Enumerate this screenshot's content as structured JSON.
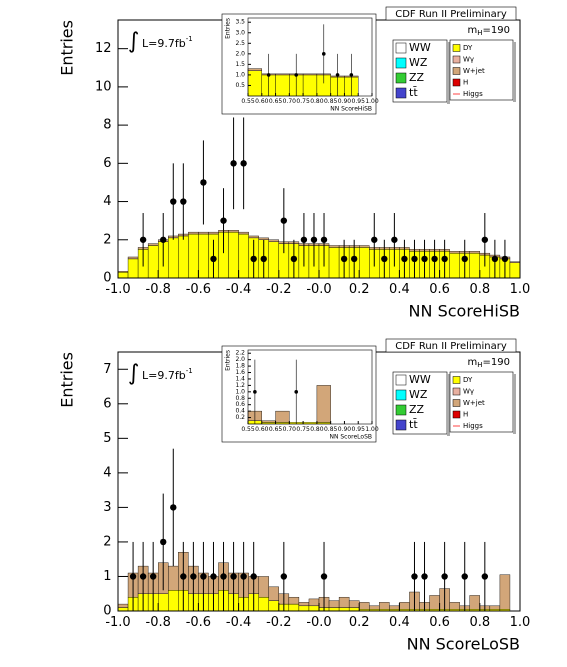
{
  "chart_data": [
    {
      "type": "histogram",
      "header": "CDF Run II Preliminary",
      "lumi_symbol": "∫",
      "lumi": "L=9.7fb",
      "lumi_sup": "-1",
      "mass": "m",
      "mass_sub": "H",
      "mass_value": "=190",
      "xlabel": "NN ScoreHiSB",
      "ylabel": "Entries",
      "xlim": [
        -1.0,
        1.0
      ],
      "ylim": [
        0,
        13.5
      ],
      "xticks": [
        {
          "value": -1.0,
          "label": "-1.0"
        },
        {
          "value": -0.8,
          "label": "-0.8"
        },
        {
          "value": -0.6,
          "label": "-0.6"
        },
        {
          "value": -0.4,
          "label": "-0.4"
        },
        {
          "value": -0.2,
          "label": "-0.2"
        },
        {
          "value": 0,
          "label": "-0.0"
        },
        0.2,
        0.4,
        0.6,
        0.8,
        {
          "value": 1.0,
          "label": "1.0"
        }
      ],
      "yticks": [
        0,
        2,
        4,
        6,
        8,
        10,
        12
      ],
      "bins": [
        -1.0,
        -0.95,
        -0.9,
        -0.85,
        -0.8,
        -0.75,
        -0.7,
        -0.65,
        -0.6,
        -0.55,
        -0.5,
        -0.45,
        -0.4,
        -0.35,
        -0.3,
        -0.25,
        -0.2,
        -0.15,
        -0.1,
        -0.05,
        0,
        0.05,
        0.1,
        0.15,
        0.2,
        0.25,
        0.3,
        0.35,
        0.4,
        0.45,
        0.5,
        0.55,
        0.6,
        0.65,
        0.7,
        0.75,
        0.8,
        0.85,
        0.9,
        0.95,
        1.0
      ],
      "series": [
        {
          "name": "DY",
          "color": "#ffff00",
          "values": [
            0.3,
            1.0,
            1.5,
            1.7,
            1.9,
            2.1,
            2.2,
            2.3,
            2.3,
            2.3,
            2.4,
            2.4,
            2.3,
            2.1,
            2.0,
            1.9,
            1.8,
            1.8,
            1.7,
            1.7,
            1.7,
            1.6,
            1.6,
            1.6,
            1.6,
            1.5,
            1.5,
            1.5,
            1.5,
            1.4,
            1.4,
            1.4,
            1.4,
            1.3,
            1.3,
            1.3,
            1.2,
            1.1,
            1.0,
            0.8
          ]
        },
        {
          "name": "W+jet",
          "color": "#d2a679",
          "values": [
            0.05,
            0.1,
            0.1,
            0.1,
            0.1,
            0.1,
            0.1,
            0.1,
            0.1,
            0.1,
            0.1,
            0.1,
            0.1,
            0.1,
            0.1,
            0.1,
            0.1,
            0.1,
            0.1,
            0.1,
            0.1,
            0.1,
            0.1,
            0.1,
            0.1,
            0.1,
            0.1,
            0.1,
            0.1,
            0.1,
            0.1,
            0.1,
            0.1,
            0.1,
            0.1,
            0.1,
            0.1,
            0.1,
            0.1,
            0.05
          ]
        }
      ],
      "points": {
        "x": [
          -0.875,
          -0.775,
          -0.725,
          -0.675,
          -0.575,
          -0.525,
          -0.475,
          -0.425,
          -0.375,
          -0.325,
          -0.275,
          -0.175,
          -0.125,
          -0.075,
          -0.025,
          0.025,
          0.125,
          0.175,
          0.275,
          0.325,
          0.375,
          0.425,
          0.475,
          0.525,
          0.575,
          0.625,
          0.725,
          0.825,
          0.875,
          0.925
        ],
        "values": [
          2,
          2,
          4,
          4,
          5,
          1,
          3,
          6,
          6,
          1,
          1,
          3,
          1,
          2,
          2,
          2,
          1,
          1,
          2,
          1,
          2,
          1,
          1,
          1,
          1,
          1,
          1,
          2,
          1,
          1
        ],
        "errors": [
          1.4,
          1.4,
          2,
          2,
          2.2,
          1,
          1.7,
          2.4,
          2.4,
          1,
          1,
          1.7,
          1,
          1.4,
          1.4,
          1.4,
          1,
          1,
          1.4,
          1,
          1.4,
          1,
          1,
          1,
          1,
          1,
          1,
          1.4,
          1,
          1
        ]
      },
      "other_entries": [
        {
          "name": "WW",
          "color": "#ffffff"
        },
        {
          "name": "WZ",
          "color": "#00ffff"
        },
        {
          "name": "ZZ",
          "color": "#33cc33"
        },
        {
          "name": "tt̄",
          "color": "#4444cc"
        },
        {
          "name": "Wγ",
          "color": "#e8b0a0"
        },
        {
          "name": "H",
          "color": "#dd0000"
        },
        {
          "name": "Higgs",
          "color": "#ff4444",
          "marker": "line"
        }
      ]
    },
    {
      "type": "histogram",
      "xlabel": "NN ScoreHiSB",
      "ylabel": "Entries",
      "xlim": [
        0.55,
        1.0
      ],
      "ylim": [
        0,
        3.7
      ],
      "xticks": [
        0.55,
        {
          "value": 0.6,
          "label": "0.60"
        },
        0.65,
        {
          "value": 0.7,
          "label": "0.70"
        },
        0.75,
        {
          "value": 0.8,
          "label": "0.80"
        },
        0.85,
        {
          "value": 0.9,
          "label": "0.90"
        },
        0.95,
        {
          "value": 1.0,
          "label": "1.00"
        }
      ],
      "yticks": [
        0.5,
        {
          "value": 1.0,
          "label": "1.0"
        },
        1.5,
        {
          "value": 2.0,
          "label": "2.0"
        },
        2.5,
        {
          "value": 3.0,
          "label": "3.0"
        },
        3.5
      ],
      "bins": [
        0.55,
        0.6,
        0.65,
        0.7,
        0.75,
        0.8,
        0.85,
        0.9,
        0.95,
        1.0
      ],
      "series": [
        {
          "name": "DY",
          "color": "#ffff00",
          "values": [
            1.2,
            1.0,
            1.0,
            1.0,
            1.0,
            1.0,
            0.9,
            0.9,
            0
          ]
        },
        {
          "name": "W+jet",
          "color": "#d2a679",
          "values": [
            0.1,
            0.05,
            0.05,
            0.05,
            0.05,
            0.05,
            0.05,
            0.05,
            0
          ]
        }
      ],
      "points": {
        "x": [
          0.625,
          0.725,
          0.825,
          0.875,
          0.925
        ],
        "values": [
          1,
          1,
          2,
          1,
          1
        ],
        "errors": [
          1,
          1,
          1.4,
          1,
          1
        ]
      }
    },
    {
      "type": "histogram",
      "header": "CDF Run II Preliminary",
      "lumi_symbol": "∫",
      "lumi": "L=9.7fb",
      "lumi_sup": "-1",
      "mass": "m",
      "mass_sub": "H",
      "mass_value": "=190",
      "xlabel": "NN ScoreLoSB",
      "ylabel": "Entries",
      "xlim": [
        -1.0,
        1.0
      ],
      "ylim": [
        0,
        7.5
      ],
      "xticks": [
        {
          "value": -1.0,
          "label": "-1.0"
        },
        {
          "value": -0.8,
          "label": "-0.8"
        },
        {
          "value": -0.6,
          "label": "-0.6"
        },
        {
          "value": -0.4,
          "label": "-0.4"
        },
        {
          "value": -0.2,
          "label": "-0.2"
        },
        {
          "value": 0,
          "label": "-0.0"
        },
        0.2,
        0.4,
        0.6,
        0.8,
        {
          "value": 1.0,
          "label": "1.0"
        }
      ],
      "yticks": [
        0,
        1,
        2,
        3,
        4,
        5,
        6,
        7
      ],
      "bins": [
        -1.0,
        -0.95,
        -0.9,
        -0.85,
        -0.8,
        -0.75,
        -0.7,
        -0.65,
        -0.6,
        -0.55,
        -0.5,
        -0.45,
        -0.4,
        -0.35,
        -0.3,
        -0.25,
        -0.2,
        -0.15,
        -0.1,
        -0.05,
        0,
        0.05,
        0.1,
        0.15,
        0.2,
        0.25,
        0.3,
        0.35,
        0.4,
        0.45,
        0.5,
        0.55,
        0.6,
        0.65,
        0.7,
        0.75,
        0.8,
        0.85,
        0.9,
        0.95,
        1.0
      ],
      "series": [
        {
          "name": "DY",
          "color": "#ffff00",
          "values": [
            0.1,
            0.4,
            0.5,
            0.5,
            0.5,
            0.6,
            0.6,
            0.5,
            0.5,
            0.5,
            0.6,
            0.5,
            0.4,
            0.5,
            0.4,
            0.3,
            0.2,
            0.2,
            0.15,
            0.15,
            0.1,
            0.1,
            0.1,
            0.1,
            0.05,
            0.05,
            0.05,
            0.05,
            0.05,
            0.05,
            0.05,
            0.05,
            0.05,
            0.05,
            0.05,
            0.05,
            0.05,
            0.05,
            0.05,
            0
          ]
        },
        {
          "name": "W+jet",
          "color": "#d2a679",
          "values": [
            0.1,
            0.7,
            0.8,
            0.6,
            0.9,
            0.7,
            1.1,
            0.8,
            0.6,
            0.5,
            0.8,
            0.6,
            0.7,
            0.5,
            0.6,
            0.4,
            0.3,
            0.2,
            0.1,
            0.2,
            0.3,
            0.2,
            0.3,
            0.2,
            0.2,
            0.1,
            0.2,
            0.1,
            0.2,
            0.5,
            0.2,
            0.4,
            0.6,
            0.2,
            0.1,
            0.4,
            0.1,
            0.1,
            1.0,
            0
          ]
        }
      ],
      "points": {
        "x": [
          -0.925,
          -0.875,
          -0.825,
          -0.775,
          -0.725,
          -0.675,
          -0.625,
          -0.575,
          -0.525,
          -0.475,
          -0.425,
          -0.375,
          -0.325,
          -0.175,
          0.025,
          0.475,
          0.525,
          0.625,
          0.725,
          0.825
        ],
        "values": [
          1,
          1,
          1,
          2,
          3,
          1,
          1,
          1,
          1,
          1,
          1,
          1,
          1,
          1,
          1,
          1,
          1,
          1,
          1,
          1
        ],
        "errors": [
          1,
          1,
          1,
          1.4,
          1.7,
          1,
          1,
          1,
          1,
          1,
          1,
          1,
          1,
          1,
          1,
          1,
          1,
          1,
          1,
          1
        ]
      },
      "other_entries": [
        {
          "name": "WW",
          "color": "#ffffff"
        },
        {
          "name": "WZ",
          "color": "#00ffff"
        },
        {
          "name": "ZZ",
          "color": "#33cc33"
        },
        {
          "name": "tt̄",
          "color": "#4444cc"
        },
        {
          "name": "Wγ",
          "color": "#e8b0a0"
        },
        {
          "name": "H",
          "color": "#dd0000"
        },
        {
          "name": "Higgs",
          "color": "#ff4444",
          "marker": "line"
        }
      ]
    },
    {
      "type": "histogram",
      "xlabel": "NN ScoreLoSB",
      "ylabel": "Entries",
      "xlim": [
        0.55,
        1.0
      ],
      "ylim": [
        0,
        2.3
      ],
      "xticks": [
        0.55,
        {
          "value": 0.6,
          "label": "0.60"
        },
        0.65,
        {
          "value": 0.7,
          "label": "0.70"
        },
        0.75,
        {
          "value": 0.8,
          "label": "0.80"
        },
        0.85,
        {
          "value": 0.9,
          "label": "0.90"
        },
        0.95,
        {
          "value": 1.0,
          "label": "1.00"
        }
      ],
      "yticks": [
        0.2,
        0.4,
        0.6,
        0.8,
        {
          "value": 1.0,
          "label": "1.0"
        },
        1.2,
        1.4,
        1.6,
        1.8,
        {
          "value": 2.0,
          "label": "2.0"
        },
        2.2
      ],
      "bins": [
        0.55,
        0.6,
        0.65,
        0.7,
        0.75,
        0.8,
        0.85,
        0.9,
        0.95,
        1.0
      ],
      "series": [
        {
          "name": "DY",
          "color": "#ffff00",
          "values": [
            0.1,
            0.05,
            0.05,
            0.05,
            0.05,
            0.05,
            0,
            0,
            0
          ]
        },
        {
          "name": "W+jet",
          "color": "#d2a679",
          "values": [
            0.3,
            0.05,
            0.35,
            0,
            0,
            1.15,
            0,
            0,
            0
          ]
        }
      ],
      "points": {
        "x": [
          0.575,
          0.725
        ],
        "values": [
          1,
          1
        ],
        "errors": [
          1,
          1
        ]
      }
    }
  ]
}
